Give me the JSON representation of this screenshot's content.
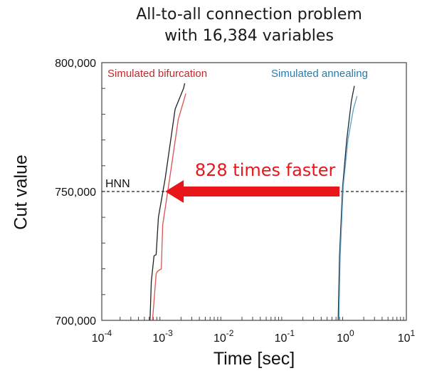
{
  "chart_data": {
    "type": "line",
    "title": "All-to-all connection problem with 16,384 variables",
    "title_lines": [
      "All-to-all connection problem",
      "with 16,384 variables"
    ],
    "xlabel": "Time [sec]",
    "ylabel": "Cut value",
    "xscale": "log",
    "xlim": [
      0.0001,
      10
    ],
    "ylim": [
      700000,
      800000
    ],
    "x_ticks": [
      {
        "base": "10",
        "exp": "-4",
        "value": 0.0001
      },
      {
        "base": "10",
        "exp": "-3",
        "value": 0.001
      },
      {
        "base": "10",
        "exp": "-2",
        "value": 0.01
      },
      {
        "base": "10",
        "exp": "-1",
        "value": 0.1
      },
      {
        "base": "10",
        "exp": "0",
        "value": 1
      },
      {
        "base": "10",
        "exp": "1",
        "value": 10
      }
    ],
    "y_ticks": [
      "700,000",
      "750,000",
      "800,000"
    ],
    "y_tick_values": [
      700000,
      750000,
      800000
    ],
    "grid": false,
    "reference_line": {
      "label": "HNN",
      "y": 750000,
      "style": "dashed"
    },
    "annotation": {
      "text": "828 times faster",
      "color": "#e8161b",
      "arrow": "left",
      "from_x": 0.8,
      "to_x": 0.0011,
      "y": 750000
    },
    "series_labels": [
      {
        "name": "Simulated bifurcation",
        "color": "#c0282e"
      },
      {
        "name": "Simulated annealing",
        "color": "#2a7aa8"
      }
    ],
    "series": [
      {
        "name": "Simulated bifurcation (run 1)",
        "color": "#222222",
        "x": [
          0.00062,
          0.00065,
          0.00072,
          0.00078,
          0.00085,
          0.0011,
          0.0016,
          0.0022,
          0.0023
        ],
        "y": [
          700000,
          715000,
          725000,
          725500,
          740000,
          755000,
          782000,
          790000,
          792000
        ]
      },
      {
        "name": "Simulated bifurcation (run 2)",
        "color": "#d9534f",
        "x": [
          0.00068,
          0.00078,
          0.00082,
          0.00095,
          0.001,
          0.0013,
          0.0018,
          0.0024
        ],
        "y": [
          700000,
          718000,
          719000,
          720000,
          737000,
          755000,
          778000,
          788000
        ]
      },
      {
        "name": "Simulated annealing (run 1)",
        "color": "#1b2a36",
        "x": [
          0.76,
          0.8,
          0.9,
          1.05,
          1.25,
          1.4
        ],
        "y": [
          700000,
          725000,
          752000,
          770000,
          785000,
          791000
        ]
      },
      {
        "name": "Simulated annealing (run 2)",
        "color": "#5aa0c8",
        "x": [
          0.78,
          0.82,
          0.92,
          1.1,
          1.35,
          1.55
        ],
        "y": [
          700000,
          725000,
          752000,
          770000,
          782000,
          787000
        ]
      }
    ]
  }
}
